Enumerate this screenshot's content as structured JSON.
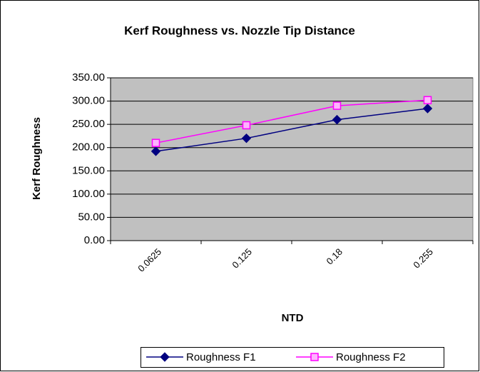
{
  "chart_data": {
    "type": "line",
    "title": "Kerf Roughness vs. Nozzle Tip Distance",
    "x_label": "NTD",
    "y_label": "Kerf Roughness",
    "categories": [
      "0.0625",
      "0.125",
      "0.18",
      "0.255"
    ],
    "series": [
      {
        "name": "Roughness F1",
        "color": "#000080",
        "marker": "diamond",
        "values": [
          192,
          220,
          260,
          284
        ]
      },
      {
        "name": "Roughness F2",
        "color": "#ff00ff",
        "marker": "square",
        "values": [
          210,
          248,
          290,
          302
        ]
      }
    ],
    "ylim": [
      0,
      350
    ],
    "yticks": [
      {
        "value": 0,
        "label": "0.00"
      },
      {
        "value": 50,
        "label": "50.00"
      },
      {
        "value": 100,
        "label": "100.00"
      },
      {
        "value": 150,
        "label": "150.00"
      },
      {
        "value": 200,
        "label": "200.00"
      },
      {
        "value": 250,
        "label": "250.00"
      },
      {
        "value": 300,
        "label": "300.00"
      },
      {
        "value": 350,
        "label": "350.00"
      }
    ],
    "grid": true,
    "legend": "bottom"
  }
}
